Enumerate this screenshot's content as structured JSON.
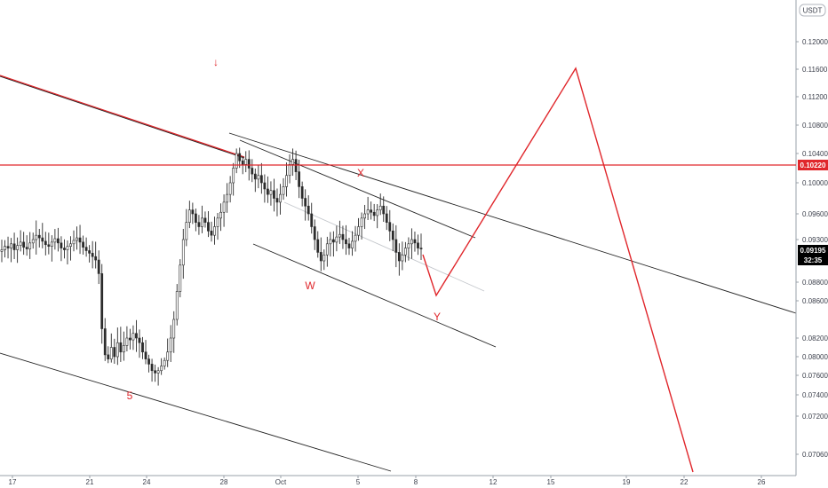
{
  "chart_data": {
    "type": "candlestick",
    "currency": "USDT",
    "x_ticks": [
      "17",
      "21",
      "24",
      "28",
      "Oct",
      "5",
      "8",
      "12",
      "15",
      "19",
      "22",
      "26"
    ],
    "y_ticks": [
      "0.12000",
      "0.11600",
      "0.11200",
      "0.10800",
      "0.10400",
      "0.10000",
      "0.09600",
      "0.09300",
      "0.08800",
      "0.08600",
      "0.08200",
      "0.08000",
      "0.07600",
      "0.07400",
      "0.07200",
      "0.07060"
    ],
    "resistance": {
      "value": 0.1022,
      "label": "0.10220",
      "color": "#e0262b"
    },
    "last_price": {
      "value": 0.09195,
      "label": "0.09195",
      "countdown": "32:35",
      "color": "#000000"
    },
    "wave_labels": [
      "5",
      "W",
      "X",
      "Y"
    ],
    "arrow_down": "↓",
    "price_series_close": [
      0.0918,
      0.0922,
      0.092,
      0.0925,
      0.0918,
      0.0923,
      0.0927,
      0.0921,
      0.0919,
      0.0926,
      0.093,
      0.0935,
      0.0932,
      0.0928,
      0.0924,
      0.0922,
      0.0927,
      0.0931,
      0.0926,
      0.092,
      0.0918,
      0.0922,
      0.0925,
      0.0929,
      0.0932,
      0.0927,
      0.0921,
      0.0917,
      0.0914,
      0.091,
      0.0906,
      0.089,
      0.083,
      0.0802,
      0.0795,
      0.081,
      0.08,
      0.0815,
      0.0805,
      0.0812,
      0.082,
      0.0818,
      0.0825,
      0.082,
      0.0815,
      0.0805,
      0.0795,
      0.0784,
      0.077,
      0.0765,
      0.077,
      0.078,
      0.0792,
      0.0805,
      0.082,
      0.084,
      0.087,
      0.09,
      0.093,
      0.095,
      0.0965,
      0.096,
      0.095,
      0.0945,
      0.0955,
      0.095,
      0.094,
      0.0935,
      0.0945,
      0.0955,
      0.0962,
      0.0975,
      0.0985,
      0.1,
      0.102,
      0.104,
      0.103,
      0.1025,
      0.1032,
      0.102,
      0.1012,
      0.1005,
      0.101,
      0.1,
      0.0992,
      0.0985,
      0.099,
      0.098,
      0.0975,
      0.0985,
      0.0995,
      0.101,
      0.1025,
      0.1032,
      0.1015,
      0.0995,
      0.098,
      0.097,
      0.096,
      0.0945,
      0.093,
      0.0915,
      0.0905,
      0.0912,
      0.0925,
      0.093,
      0.0927,
      0.0933,
      0.0936,
      0.093,
      0.0925,
      0.092,
      0.0928,
      0.0935,
      0.0945,
      0.0955,
      0.096,
      0.0965,
      0.0962,
      0.0958,
      0.0965,
      0.097,
      0.096,
      0.095,
      0.094,
      0.093,
      0.0915,
      0.0905,
      0.0912,
      0.092,
      0.0925,
      0.093,
      0.0926,
      0.092,
      0.09195
    ]
  }
}
